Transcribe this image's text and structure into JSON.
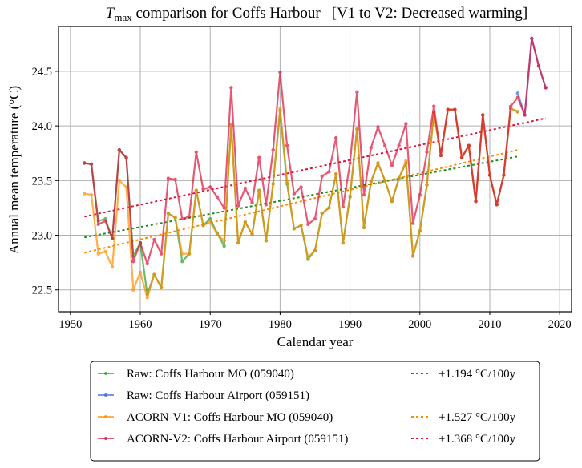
{
  "chart_data": {
    "type": "line",
    "title": {
      "main_symbol": "T",
      "main_subscript": "max",
      "rest": " comparison for Coffs Harbour",
      "bracket": "[V1 to V2: Decreased warming]"
    },
    "xlabel": "Calendar year",
    "ylabel": "Annual mean temperature (°C)",
    "xlim": [
      1948.3,
      2021.7
    ],
    "ylim": [
      22.3,
      24.91
    ],
    "xticks": [
      1950,
      1960,
      1970,
      1980,
      1990,
      2000,
      2010,
      2020
    ],
    "yticks": [
      22.5,
      23.0,
      23.5,
      24.0,
      24.5
    ],
    "ytick_labels": [
      "22.5",
      "23.0",
      "23.5",
      "24.0",
      "24.5"
    ],
    "grid": true,
    "legend_placement": "below",
    "series": [
      {
        "name": "Raw: Coffs Harbour MO (059040)",
        "color": "#2ca02c",
        "x": [
          1952,
          1953,
          1954,
          1955,
          1956,
          1957,
          1958,
          1959,
          1960,
          1961,
          1962,
          1963,
          1964,
          1965,
          1966,
          1967,
          1968,
          1969,
          1970,
          1971,
          1972,
          1973,
          1974,
          1975,
          1976,
          1977,
          1978,
          1979,
          1980,
          1981,
          1982,
          1983,
          1984,
          1985,
          1986,
          1987,
          1988,
          1989,
          1990,
          1991,
          1992,
          1993,
          1994,
          1995,
          1996,
          1997,
          1998,
          1999,
          2000,
          2001,
          2002,
          2003,
          2004,
          2005,
          2006,
          2007,
          2008,
          2009,
          2010,
          2011,
          2012,
          2013,
          2014
        ],
        "y": [
          23.66,
          23.65,
          23.13,
          23.15,
          22.97,
          23.78,
          23.71,
          22.81,
          22.93,
          22.46,
          22.64,
          22.52,
          23.2,
          23.16,
          22.76,
          22.83,
          23.41,
          23.09,
          23.15,
          23.02,
          22.9,
          24.01,
          22.93,
          23.12,
          23.01,
          23.41,
          22.95,
          23.47,
          24.14,
          23.47,
          23.06,
          23.09,
          22.78,
          22.86,
          23.2,
          23.25,
          23.56,
          22.93,
          23.35,
          23.97,
          23.07,
          23.49,
          23.66,
          23.5,
          23.31,
          23.52,
          23.66,
          22.81,
          23.04,
          23.46,
          24.12,
          23.73,
          24.15,
          24.15,
          23.71,
          23.82,
          23.31,
          24.1,
          23.55,
          23.28,
          23.55,
          24.16,
          24.13
        ]
      },
      {
        "name": "Raw: Coffs Harbour Airport (059151)",
        "color": "#4169e1",
        "x": [
          2014,
          2015,
          2016,
          2017,
          2018
        ],
        "y": [
          24.3,
          24.1,
          24.8,
          24.55,
          24.35
        ]
      },
      {
        "name": "ACORN-V1: Coffs Harbour MO (059040)",
        "color": "#ff8c00",
        "x": [
          1952,
          1953,
          1954,
          1955,
          1956,
          1957,
          1958,
          1959,
          1960,
          1961,
          1962,
          1963,
          1964,
          1965,
          1966,
          1967,
          1968,
          1969,
          1970,
          1971,
          1972,
          1973,
          1974,
          1975,
          1976,
          1977,
          1978,
          1979,
          1980,
          1981,
          1982,
          1983,
          1984,
          1985,
          1986,
          1987,
          1988,
          1989,
          1990,
          1991,
          1992,
          1993,
          1994,
          1995,
          1996,
          1997,
          1998,
          1999,
          2000,
          2001,
          2002,
          2003,
          2004,
          2005,
          2006,
          2007,
          2008,
          2009,
          2010,
          2011,
          2012,
          2013,
          2014
        ],
        "y": [
          23.38,
          23.37,
          22.83,
          22.85,
          22.71,
          23.5,
          23.44,
          22.5,
          22.66,
          22.43,
          22.64,
          22.52,
          23.2,
          23.16,
          22.83,
          22.83,
          23.41,
          23.09,
          23.12,
          23.01,
          22.95,
          24.01,
          22.93,
          23.12,
          23.01,
          23.4,
          22.95,
          23.47,
          24.16,
          23.49,
          23.06,
          23.09,
          22.8,
          22.86,
          23.2,
          23.25,
          23.56,
          22.93,
          23.36,
          23.97,
          23.07,
          23.49,
          23.66,
          23.5,
          23.31,
          23.52,
          23.68,
          22.81,
          23.04,
          23.46,
          24.12,
          23.73,
          24.15,
          24.15,
          23.71,
          23.82,
          23.31,
          24.1,
          23.55,
          23.28,
          23.55,
          24.16,
          24.13
        ]
      },
      {
        "name": "ACORN-V2: Coffs Harbour Airport (059151)",
        "color": "#dc143c",
        "x": [
          1952,
          1953,
          1954,
          1955,
          1956,
          1957,
          1958,
          1959,
          1960,
          1961,
          1962,
          1963,
          1964,
          1965,
          1966,
          1967,
          1968,
          1969,
          1970,
          1971,
          1972,
          1973,
          1974,
          1975,
          1976,
          1977,
          1978,
          1979,
          1980,
          1981,
          1982,
          1983,
          1984,
          1985,
          1986,
          1987,
          1988,
          1989,
          1990,
          1991,
          1992,
          1993,
          1994,
          1995,
          1996,
          1997,
          1998,
          1999,
          2000,
          2001,
          2002,
          2003,
          2004,
          2005,
          2006,
          2007,
          2008,
          2009,
          2010,
          2011,
          2012,
          2013,
          2014,
          2015,
          2016,
          2017,
          2018
        ],
        "y": [
          23.66,
          23.65,
          23.1,
          23.13,
          22.97,
          23.78,
          23.71,
          22.76,
          22.93,
          22.74,
          22.96,
          22.83,
          23.52,
          23.51,
          23.15,
          23.17,
          23.76,
          23.42,
          23.44,
          23.35,
          23.25,
          24.35,
          23.27,
          23.43,
          23.3,
          23.71,
          23.28,
          23.78,
          24.49,
          23.82,
          23.38,
          23.44,
          23.1,
          23.15,
          23.54,
          23.58,
          23.89,
          23.26,
          23.66,
          24.31,
          23.37,
          23.8,
          23.99,
          23.82,
          23.64,
          23.82,
          24.02,
          23.11,
          23.37,
          23.76,
          24.18,
          23.73,
          24.15,
          24.15,
          23.71,
          23.82,
          23.31,
          24.1,
          23.55,
          23.28,
          23.55,
          24.18,
          24.26,
          24.1,
          24.8,
          24.55,
          24.35
        ]
      }
    ],
    "trends": [
      {
        "label": "+1.194 °C/100y",
        "color": "#228b22",
        "x": [
          1952,
          2014
        ],
        "y": [
          22.98,
          23.72
        ],
        "slope_per_100y": 1.194
      },
      {
        "label": "",
        "color": null,
        "x": [],
        "y": [],
        "slope_per_100y": null
      },
      {
        "label": "+1.527 °C/100y",
        "color": "#ff8c00",
        "x": [
          1952,
          2014
        ],
        "y": [
          22.84,
          23.78
        ],
        "slope_per_100y": 1.527
      },
      {
        "label": "+1.368 °C/100y",
        "color": "#dc143c",
        "x": [
          1952,
          2018
        ],
        "y": [
          23.17,
          24.07
        ],
        "slope_per_100y": 1.368
      }
    ]
  }
}
